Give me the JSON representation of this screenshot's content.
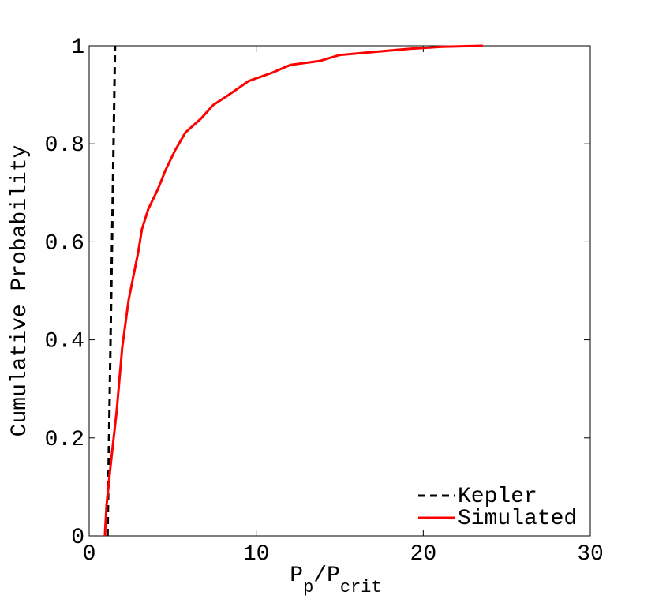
{
  "chart_data": {
    "type": "line",
    "ylabel": "Cumulative Probability",
    "xlabel_parts": [
      {
        "text": "P"
      },
      {
        "text": "p",
        "sub": true
      },
      {
        "text": "/P"
      },
      {
        "text": "crit",
        "sub": true
      }
    ],
    "xlim": [
      0,
      30
    ],
    "xticks": [
      0,
      10,
      20,
      30
    ],
    "ylim": [
      0,
      1
    ],
    "yticks": [
      0,
      0.2,
      0.4,
      0.6,
      0.8,
      1
    ],
    "legend": "lower right",
    "series": [
      {
        "name": "Kepler",
        "color": "#000000",
        "dashed": true,
        "x": [
          1.1,
          1.55
        ],
        "values": [
          0,
          1
        ]
      },
      {
        "name": "Simulated",
        "color": "#ff0000",
        "dashed": false,
        "x": [
          0.94,
          1.04,
          1.28,
          1.65,
          1.98,
          2.36,
          2.6,
          2.93,
          3.16,
          3.54,
          4.11,
          4.58,
          5.15,
          5.76,
          6.71,
          7.42,
          8.36,
          9.54,
          10.96,
          12.05,
          13.79,
          14.97,
          16.86,
          19.23,
          21.12,
          23.57
        ],
        "values": [
          0,
          0.063,
          0.143,
          0.256,
          0.385,
          0.481,
          0.522,
          0.578,
          0.626,
          0.667,
          0.707,
          0.747,
          0.787,
          0.823,
          0.852,
          0.879,
          0.9,
          0.928,
          0.945,
          0.961,
          0.969,
          0.981,
          0.987,
          0.994,
          0.998,
          1
        ]
      }
    ]
  }
}
